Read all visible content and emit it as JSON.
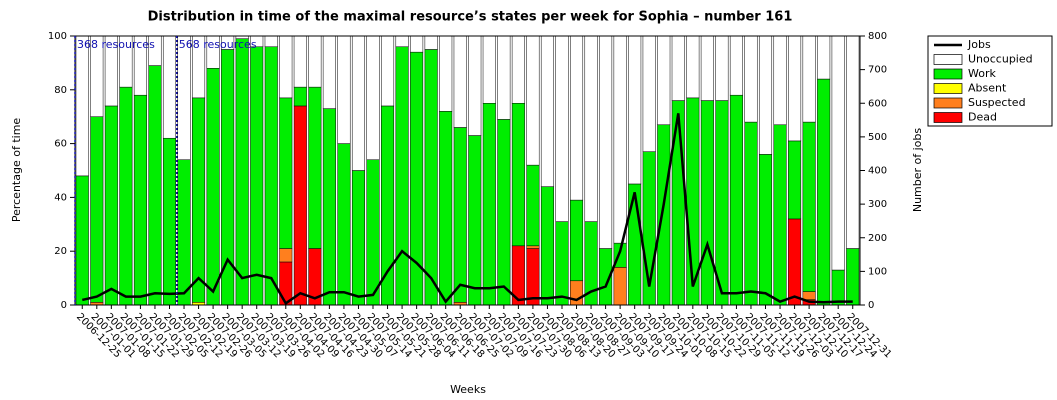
{
  "chart_data": {
    "type": "stacked_bar",
    "title": "Distribution in time of the maximal resource’s states per week for Sophia – number 161",
    "x_label": "Weeks",
    "y_label": "Percentage of time",
    "y2_label": "Number of jobs",
    "annotations": [
      "368 resources",
      "568 resources"
    ],
    "categories": [
      "2006-12-25",
      "2007-01-01",
      "2007-01-08",
      "2007-01-15",
      "2007-01-22",
      "2007-01-29",
      "2007-02-05",
      "2007-02-12",
      "2007-02-19",
      "2007-02-26",
      "2007-03-05",
      "2007-03-12",
      "2007-03-19",
      "2007-03-26",
      "2007-04-02",
      "2007-04-09",
      "2007-04-16",
      "2007-04-23",
      "2007-04-30",
      "2007-05-07",
      "2007-05-14",
      "2007-05-21",
      "2007-05-28",
      "2007-06-04",
      "2007-06-11",
      "2007-06-18",
      "2007-06-25",
      "2007-07-02",
      "2007-07-09",
      "2007-07-16",
      "2007-07-23",
      "2007-07-30",
      "2007-08-06",
      "2007-08-13",
      "2007-08-20",
      "2007-08-27",
      "2007-09-03",
      "2007-09-10",
      "2007-09-17",
      "2007-09-24",
      "2007-10-01",
      "2007-10-08",
      "2007-10-15",
      "2007-10-22",
      "2007-10-29",
      "2007-11-05",
      "2007-11-12",
      "2007-11-19",
      "2007-11-26",
      "2007-12-03",
      "2007-12-10",
      "2007-12-17",
      "2007-12-24",
      "2007-12-31"
    ],
    "series": [
      {
        "name": "Dead",
        "color": "#ff0000",
        "values": [
          0,
          0,
          0,
          0,
          0,
          0,
          0,
          0,
          0,
          0,
          0,
          0,
          0,
          0,
          16,
          74,
          21,
          0,
          0,
          0,
          0,
          0,
          0,
          0,
          0,
          0,
          0,
          0,
          0,
          0,
          22,
          21,
          0,
          0,
          0,
          0,
          0,
          0,
          0,
          0,
          0,
          0,
          0,
          0,
          0,
          0,
          0,
          0,
          0,
          32,
          2,
          0,
          0,
          0
        ]
      },
      {
        "name": "Suspected",
        "color": "#ff7f1e",
        "values": [
          0,
          1,
          0,
          0,
          0,
          0,
          0,
          0,
          0,
          0,
          0,
          0,
          0,
          0,
          5,
          0,
          0,
          0,
          0,
          0,
          0,
          0,
          0,
          0,
          0,
          0,
          1,
          0,
          0,
          0,
          0,
          1,
          0,
          0,
          9,
          0,
          0,
          14,
          0,
          0,
          0,
          0,
          0,
          0,
          0,
          0,
          0,
          0,
          0,
          0,
          3,
          0,
          0,
          0
        ]
      },
      {
        "name": "Absent",
        "color": "#ffff00",
        "values": [
          0,
          0,
          0,
          0,
          0,
          0,
          0,
          0,
          1,
          0,
          0,
          0,
          0,
          0,
          0,
          0,
          0,
          0,
          0,
          0,
          0,
          0,
          0,
          0,
          0,
          0,
          0,
          0,
          0,
          0,
          0,
          0,
          0,
          0,
          0,
          0,
          0,
          0,
          0,
          0,
          0,
          0,
          0,
          0,
          0,
          0,
          0,
          0,
          0,
          0,
          0,
          0,
          0,
          0
        ]
      },
      {
        "name": "Work",
        "color": "#00ee00",
        "values": [
          48,
          69,
          74,
          81,
          78,
          89,
          62,
          54,
          76,
          88,
          95,
          99,
          96,
          96,
          56,
          7,
          60,
          73,
          60,
          50,
          54,
          74,
          96,
          94,
          95,
          72,
          65,
          63,
          75,
          69,
          53,
          30,
          44,
          31,
          30,
          31,
          21,
          9,
          45,
          57,
          67,
          76,
          77,
          76,
          76,
          78,
          68,
          56,
          67,
          29,
          63,
          84,
          13,
          21
        ]
      },
      {
        "name": "Unoccupied",
        "color": "#ffffff",
        "values": [
          52,
          30,
          26,
          19,
          22,
          11,
          38,
          46,
          23,
          12,
          5,
          1,
          4,
          4,
          23,
          19,
          19,
          27,
          40,
          50,
          46,
          26,
          4,
          6,
          5,
          28,
          34,
          37,
          25,
          31,
          25,
          48,
          56,
          69,
          61,
          69,
          79,
          77,
          55,
          43,
          33,
          24,
          23,
          24,
          24,
          22,
          32,
          44,
          33,
          39,
          32,
          16,
          87,
          79
        ]
      },
      {
        "name": "Jobs",
        "color": "#000000",
        "axis": "y2",
        "values": [
          15,
          25,
          48,
          25,
          25,
          35,
          33,
          35,
          80,
          40,
          135,
          80,
          90,
          80,
          5,
          35,
          20,
          38,
          38,
          25,
          30,
          100,
          160,
          125,
          80,
          10,
          60,
          50,
          50,
          55,
          15,
          20,
          20,
          25,
          15,
          40,
          55,
          160,
          335,
          55,
          300,
          570,
          55,
          180,
          35,
          35,
          40,
          35,
          10,
          25,
          10,
          8,
          10,
          10
        ]
      }
    ],
    "ylim": [
      0,
      100
    ],
    "yticks": [
      0,
      20,
      40,
      60,
      80,
      100
    ],
    "y2lim": [
      0,
      800
    ],
    "y2ticks": [
      0,
      100,
      200,
      300,
      400,
      500,
      600,
      700,
      800
    ]
  }
}
